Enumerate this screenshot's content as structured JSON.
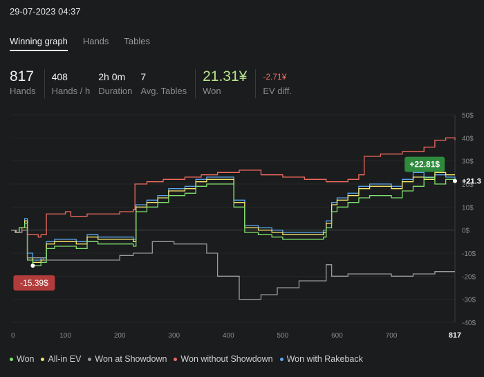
{
  "header": {
    "datetime": "29-07-2023 04:37"
  },
  "tabs": [
    {
      "label": "Winning graph",
      "active": true
    },
    {
      "label": "Hands",
      "active": false
    },
    {
      "label": "Tables",
      "active": false
    }
  ],
  "stats": {
    "hands": {
      "value": "817",
      "label": "Hands"
    },
    "hands_per_hour": {
      "value": "408",
      "label": "Hands / h"
    },
    "duration": {
      "value": "2h 0m",
      "label": "Duration"
    },
    "avg_tables": {
      "value": "7",
      "label": "Avg. Tables"
    },
    "won": {
      "value": "21.31¥",
      "label": "Won"
    },
    "ev_diff": {
      "value": "-2.71¥",
      "label": "EV diff."
    }
  },
  "legend": [
    {
      "label": "Won",
      "color": "#7fe36f"
    },
    {
      "label": "All-in EV",
      "color": "#f5e56b"
    },
    {
      "label": "Won at Showdown",
      "color": "#9a9a9a"
    },
    {
      "label": "Won without Showdown",
      "color": "#f06a5e"
    },
    {
      "label": "Won with Rakeback",
      "color": "#5aa5f0"
    }
  ],
  "callouts": {
    "min": "-15.39$",
    "max": "+22.81$",
    "end": "+21.3"
  },
  "chart_data": {
    "type": "line",
    "xlabel": "",
    "ylabel": "",
    "xlim": [
      0,
      817
    ],
    "ylim": [
      -40,
      50
    ],
    "x_ticks": [
      "0",
      "100",
      "200",
      "300",
      "400",
      "500",
      "600",
      "700",
      "817"
    ],
    "y_ticks": [
      "50$",
      "40$",
      "30$",
      "20$",
      "10$",
      "0$",
      "-10$",
      "-20$",
      "-30$",
      "-40$"
    ],
    "series": [
      {
        "name": "Won without Showdown",
        "color": "#f06a5e",
        "points": [
          [
            0,
            0
          ],
          [
            10,
            -1
          ],
          [
            20,
            1
          ],
          [
            30,
            -2
          ],
          [
            50,
            -3
          ],
          [
            55,
            -2
          ],
          [
            65,
            7
          ],
          [
            100,
            8
          ],
          [
            110,
            6
          ],
          [
            140,
            7
          ],
          [
            170,
            7
          ],
          [
            200,
            8
          ],
          [
            225,
            9
          ],
          [
            228,
            20
          ],
          [
            250,
            21
          ],
          [
            280,
            22
          ],
          [
            320,
            23
          ],
          [
            350,
            24
          ],
          [
            380,
            25
          ],
          [
            420,
            26
          ],
          [
            460,
            24
          ],
          [
            500,
            23
          ],
          [
            540,
            22
          ],
          [
            580,
            21
          ],
          [
            620,
            22
          ],
          [
            640,
            24
          ],
          [
            650,
            32
          ],
          [
            680,
            33
          ],
          [
            720,
            34
          ],
          [
            760,
            36
          ],
          [
            780,
            39
          ],
          [
            800,
            40
          ],
          [
            817,
            39
          ]
        ]
      },
      {
        "name": "Won with Rakeback",
        "color": "#5aa5f0",
        "points": [
          [
            0,
            0
          ],
          [
            8,
            -1
          ],
          [
            15,
            1
          ],
          [
            25,
            5
          ],
          [
            30,
            -10
          ],
          [
            40,
            -13
          ],
          [
            55,
            -12
          ],
          [
            65,
            -5
          ],
          [
            80,
            -4
          ],
          [
            100,
            -4
          ],
          [
            120,
            -5
          ],
          [
            140,
            -2
          ],
          [
            160,
            -3
          ],
          [
            185,
            -3
          ],
          [
            200,
            -3
          ],
          [
            225,
            -4
          ],
          [
            230,
            11
          ],
          [
            250,
            13
          ],
          [
            270,
            15
          ],
          [
            290,
            18
          ],
          [
            320,
            19
          ],
          [
            340,
            22
          ],
          [
            360,
            23
          ],
          [
            395,
            23
          ],
          [
            410,
            13
          ],
          [
            430,
            2
          ],
          [
            455,
            1
          ],
          [
            480,
            0
          ],
          [
            500,
            -1
          ],
          [
            530,
            -1
          ],
          [
            560,
            -1
          ],
          [
            575,
            0
          ],
          [
            580,
            4
          ],
          [
            590,
            12
          ],
          [
            600,
            14
          ],
          [
            620,
            16
          ],
          [
            640,
            19
          ],
          [
            660,
            20
          ],
          [
            680,
            20
          ],
          [
            700,
            19
          ],
          [
            720,
            22
          ],
          [
            740,
            25
          ],
          [
            760,
            23
          ],
          [
            780,
            24
          ],
          [
            800,
            23
          ],
          [
            817,
            22
          ]
        ]
      },
      {
        "name": "All-in EV",
        "color": "#f5e56b",
        "points": [
          [
            0,
            0
          ],
          [
            8,
            -1
          ],
          [
            15,
            1
          ],
          [
            25,
            4
          ],
          [
            30,
            -12
          ],
          [
            40,
            -14
          ],
          [
            55,
            -13
          ],
          [
            65,
            -6
          ],
          [
            80,
            -5
          ],
          [
            100,
            -5
          ],
          [
            120,
            -6
          ],
          [
            140,
            -3
          ],
          [
            160,
            -4
          ],
          [
            185,
            -4
          ],
          [
            200,
            -4
          ],
          [
            225,
            -5
          ],
          [
            230,
            10
          ],
          [
            250,
            12
          ],
          [
            270,
            14
          ],
          [
            290,
            17
          ],
          [
            320,
            18
          ],
          [
            340,
            21
          ],
          [
            360,
            22
          ],
          [
            395,
            22
          ],
          [
            410,
            12
          ],
          [
            430,
            1
          ],
          [
            455,
            0
          ],
          [
            480,
            -1
          ],
          [
            500,
            -2
          ],
          [
            530,
            -2
          ],
          [
            560,
            -2
          ],
          [
            575,
            -1
          ],
          [
            580,
            3
          ],
          [
            590,
            11
          ],
          [
            600,
            13
          ],
          [
            620,
            15
          ],
          [
            640,
            18
          ],
          [
            660,
            19
          ],
          [
            680,
            19
          ],
          [
            700,
            18
          ],
          [
            720,
            21
          ],
          [
            740,
            23
          ],
          [
            760,
            22
          ],
          [
            780,
            25
          ],
          [
            800,
            24
          ],
          [
            817,
            24
          ]
        ]
      },
      {
        "name": "Won",
        "color": "#7fe36f",
        "points": [
          [
            0,
            0
          ],
          [
            8,
            -1
          ],
          [
            15,
            1
          ],
          [
            25,
            3
          ],
          [
            30,
            -13
          ],
          [
            40,
            -15.39
          ],
          [
            55,
            -14
          ],
          [
            65,
            -8
          ],
          [
            80,
            -7
          ],
          [
            100,
            -7
          ],
          [
            120,
            -8
          ],
          [
            140,
            -5
          ],
          [
            160,
            -6
          ],
          [
            185,
            -6
          ],
          [
            200,
            -6
          ],
          [
            225,
            -7
          ],
          [
            230,
            8
          ],
          [
            250,
            10
          ],
          [
            270,
            12
          ],
          [
            290,
            15
          ],
          [
            320,
            16
          ],
          [
            340,
            19
          ],
          [
            360,
            20
          ],
          [
            395,
            20
          ],
          [
            410,
            10
          ],
          [
            430,
            -1
          ],
          [
            455,
            -2
          ],
          [
            480,
            -3
          ],
          [
            500,
            -4
          ],
          [
            530,
            -4
          ],
          [
            560,
            -4
          ],
          [
            575,
            -3
          ],
          [
            580,
            1
          ],
          [
            590,
            8
          ],
          [
            600,
            10
          ],
          [
            620,
            12
          ],
          [
            640,
            14
          ],
          [
            660,
            15
          ],
          [
            680,
            15
          ],
          [
            700,
            14
          ],
          [
            720,
            17
          ],
          [
            740,
            19
          ],
          [
            760,
            22.81
          ],
          [
            780,
            20
          ],
          [
            800,
            22
          ],
          [
            817,
            21.31
          ]
        ]
      },
      {
        "name": "Won at Showdown",
        "color": "#9a9a9a",
        "points": [
          [
            0,
            0
          ],
          [
            10,
            -1
          ],
          [
            20,
            0
          ],
          [
            30,
            -12
          ],
          [
            60,
            -13
          ],
          [
            100,
            -13
          ],
          [
            150,
            -13
          ],
          [
            200,
            -11
          ],
          [
            225,
            -10
          ],
          [
            230,
            -10
          ],
          [
            260,
            -5
          ],
          [
            300,
            -6
          ],
          [
            330,
            -6
          ],
          [
            360,
            -10
          ],
          [
            380,
            -20
          ],
          [
            420,
            -30
          ],
          [
            460,
            -28
          ],
          [
            490,
            -25
          ],
          [
            530,
            -22
          ],
          [
            575,
            -22
          ],
          [
            580,
            -15
          ],
          [
            590,
            -20
          ],
          [
            620,
            -19
          ],
          [
            660,
            -19
          ],
          [
            700,
            -20
          ],
          [
            740,
            -19
          ],
          [
            760,
            -19
          ],
          [
            780,
            -18
          ],
          [
            800,
            -18
          ],
          [
            817,
            -18
          ]
        ]
      }
    ]
  }
}
